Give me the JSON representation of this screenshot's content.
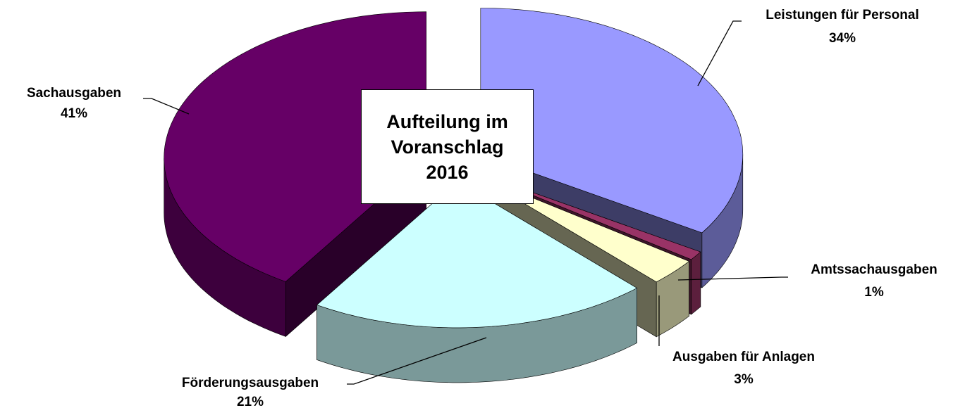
{
  "chart_data": {
    "type": "pie3d",
    "title": "Aufteilung im Voranschlag 2016",
    "categories": [
      "Leistungen für Personal",
      "Amtssachausgaben",
      "Ausgaben für Anlagen",
      "Förderungsausgaben",
      "Sachausgaben"
    ],
    "values": [
      34,
      1,
      3,
      21,
      41
    ],
    "value_labels": [
      "34%",
      "1%",
      "3%",
      "21%",
      "41%"
    ],
    "colors": [
      "#9999ff",
      "#993366",
      "#ffffcc",
      "#ccffff",
      "#660066"
    ],
    "exploded": true
  }
}
